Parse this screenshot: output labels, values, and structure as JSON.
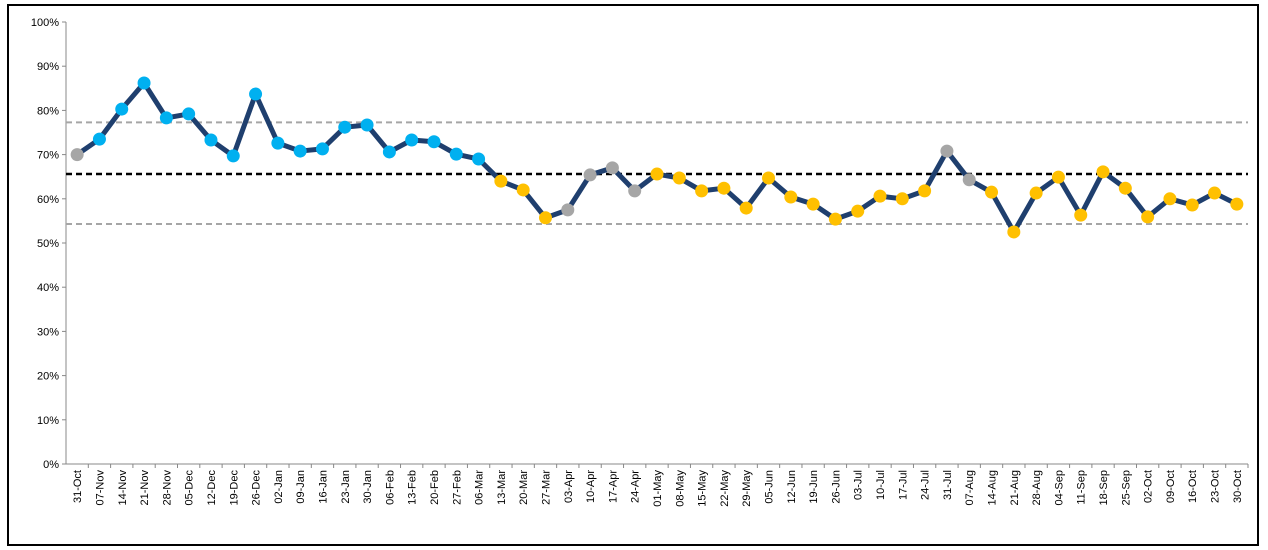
{
  "chart_data": {
    "type": "line",
    "categories": [
      "31-Oct",
      "07-Nov",
      "14-Nov",
      "21-Nov",
      "28-Nov",
      "05-Dec",
      "12-Dec",
      "19-Dec",
      "26-Dec",
      "02-Jan",
      "09-Jan",
      "16-Jan",
      "23-Jan",
      "30-Jan",
      "06-Feb",
      "13-Feb",
      "20-Feb",
      "27-Feb",
      "06-Mar",
      "13-Mar",
      "20-Mar",
      "27-Mar",
      "03-Apr",
      "10-Apr",
      "17-Apr",
      "24-Apr",
      "01-May",
      "08-May",
      "15-May",
      "22-May",
      "29-May",
      "05-Jun",
      "12-Jun",
      "19-Jun",
      "26-Jun",
      "03-Jul",
      "10-Jul",
      "17-Jul",
      "24-Jul",
      "31-Jul",
      "07-Aug",
      "14-Aug",
      "21-Aug",
      "28-Aug",
      "04-Sep",
      "11-Sep",
      "18-Sep",
      "25-Sep",
      "02-Oct",
      "09-Oct",
      "16-Oct",
      "23-Oct",
      "30-Oct"
    ],
    "series": [
      {
        "color": "#1f3f6e",
        "values": [
          70,
          73.5,
          80.3,
          86.2,
          78.3,
          79.2,
          73.3,
          69.7,
          83.7,
          72.6,
          70.8,
          71.3,
          76.2,
          76.7,
          70.6,
          73.3,
          72.9,
          70.1,
          69,
          64,
          62,
          55.7,
          57.5,
          65.4,
          67,
          61.8,
          65.6,
          64.7,
          61.8,
          62.4,
          57.9,
          64.7,
          60.4,
          58.8,
          55.4,
          57.2,
          60.6,
          60,
          61.8,
          70.8,
          64.3,
          61.5,
          52.5,
          61.3,
          64.9,
          56.3,
          66.1,
          62.4,
          55.9,
          60,
          58.6,
          61.3,
          58.8
        ],
        "point_colors": [
          "#a6a6a6",
          "#00b0f0",
          "#00b0f0",
          "#00b0f0",
          "#00b0f0",
          "#00b0f0",
          "#00b0f0",
          "#00b0f0",
          "#00b0f0",
          "#00b0f0",
          "#00b0f0",
          "#00b0f0",
          "#00b0f0",
          "#00b0f0",
          "#00b0f0",
          "#00b0f0",
          "#00b0f0",
          "#00b0f0",
          "#00b0f0",
          "#ffc000",
          "#ffc000",
          "#ffc000",
          "#a6a6a6",
          "#a6a6a6",
          "#a6a6a6",
          "#a6a6a6",
          "#ffc000",
          "#ffc000",
          "#ffc000",
          "#ffc000",
          "#ffc000",
          "#ffc000",
          "#ffc000",
          "#ffc000",
          "#ffc000",
          "#ffc000",
          "#ffc000",
          "#ffc000",
          "#ffc000",
          "#a6a6a6",
          "#a6a6a6",
          "#ffc000",
          "#ffc000",
          "#ffc000",
          "#ffc000",
          "#ffc000",
          "#ffc000",
          "#ffc000",
          "#ffc000",
          "#ffc000",
          "#ffc000",
          "#ffc000",
          "#ffc000"
        ]
      }
    ],
    "reference_lines": [
      {
        "value": 65.6,
        "color": "#000000"
      },
      {
        "value": 77.3,
        "color": "#a6a6a6"
      },
      {
        "value": 54.3,
        "color": "#a6a6a6"
      }
    ],
    "ylim": [
      0,
      100
    ],
    "yticks": [
      {
        "value": 0,
        "label": "0%"
      },
      {
        "value": 10,
        "label": "10%"
      },
      {
        "value": 20,
        "label": "20%"
      },
      {
        "value": 30,
        "label": "30%"
      },
      {
        "value": 40,
        "label": "40%"
      },
      {
        "value": 50,
        "label": "50%"
      },
      {
        "value": 60,
        "label": "60%"
      },
      {
        "value": 70,
        "label": "70%"
      },
      {
        "value": 80,
        "label": "80%"
      },
      {
        "value": 90,
        "label": "90%"
      },
      {
        "value": 100,
        "label": "100%"
      }
    ],
    "grid": false
  }
}
